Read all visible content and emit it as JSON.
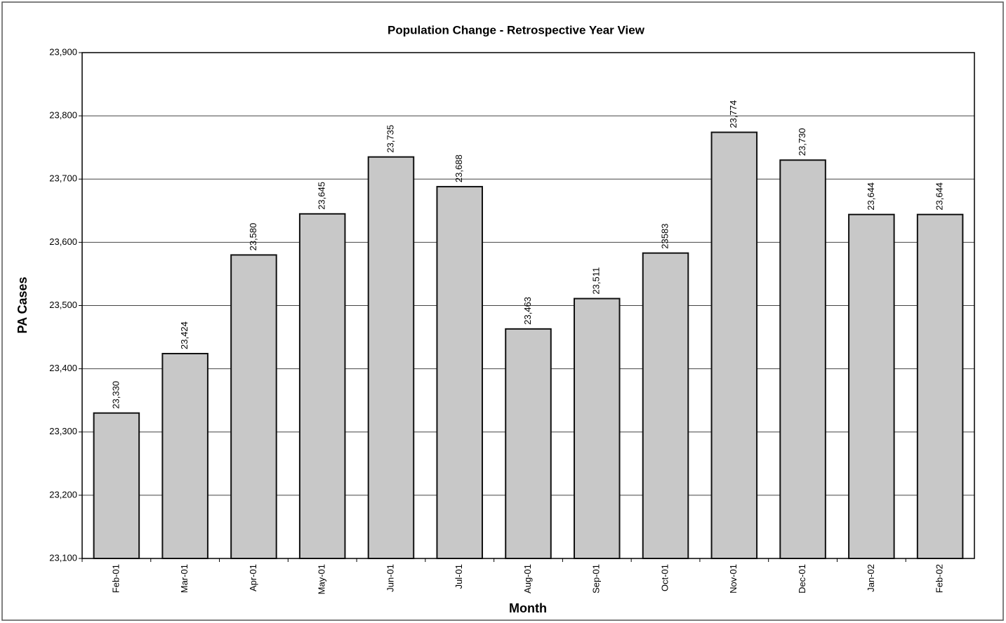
{
  "chart_data": {
    "type": "bar",
    "title": "Population Change - Retrospective Year View",
    "x_label": "Month",
    "y_label": "PA Cases",
    "categories": [
      "Feb-01",
      "Mar-01",
      "Apr-01",
      "May-01",
      "Jun-01",
      "Jul-01",
      "Aug-01",
      "Sep-01",
      "Oct-01",
      "Nov-01",
      "Dec-01",
      "Jan-02",
      "Feb-02"
    ],
    "values": [
      23330,
      23424,
      23580,
      23645,
      23735,
      23688,
      23463,
      23511,
      23583,
      23774,
      23730,
      23644,
      23644
    ],
    "value_labels": [
      "23,330",
      "23,424",
      "23,580",
      "23,645",
      "23,735",
      "23,688",
      "23,463",
      "23,511",
      "23583",
      "23,774",
      "23,730",
      "23,644",
      "23,644"
    ],
    "color": "#c8c8c8",
    "ylim": [
      23100,
      23900
    ],
    "yticks": [
      {
        "value": 23100,
        "label": "23,100"
      },
      {
        "value": 23200,
        "label": "23,200"
      },
      {
        "value": 23300,
        "label": "23,300"
      },
      {
        "value": 23400,
        "label": "23,400"
      },
      {
        "value": 23500,
        "label": "23,500"
      },
      {
        "value": 23600,
        "label": "23,600"
      },
      {
        "value": 23700,
        "label": "23,700"
      },
      {
        "value": 23800,
        "label": "23,800"
      },
      {
        "value": 23900,
        "label": "23,900"
      }
    ],
    "grid": true
  }
}
